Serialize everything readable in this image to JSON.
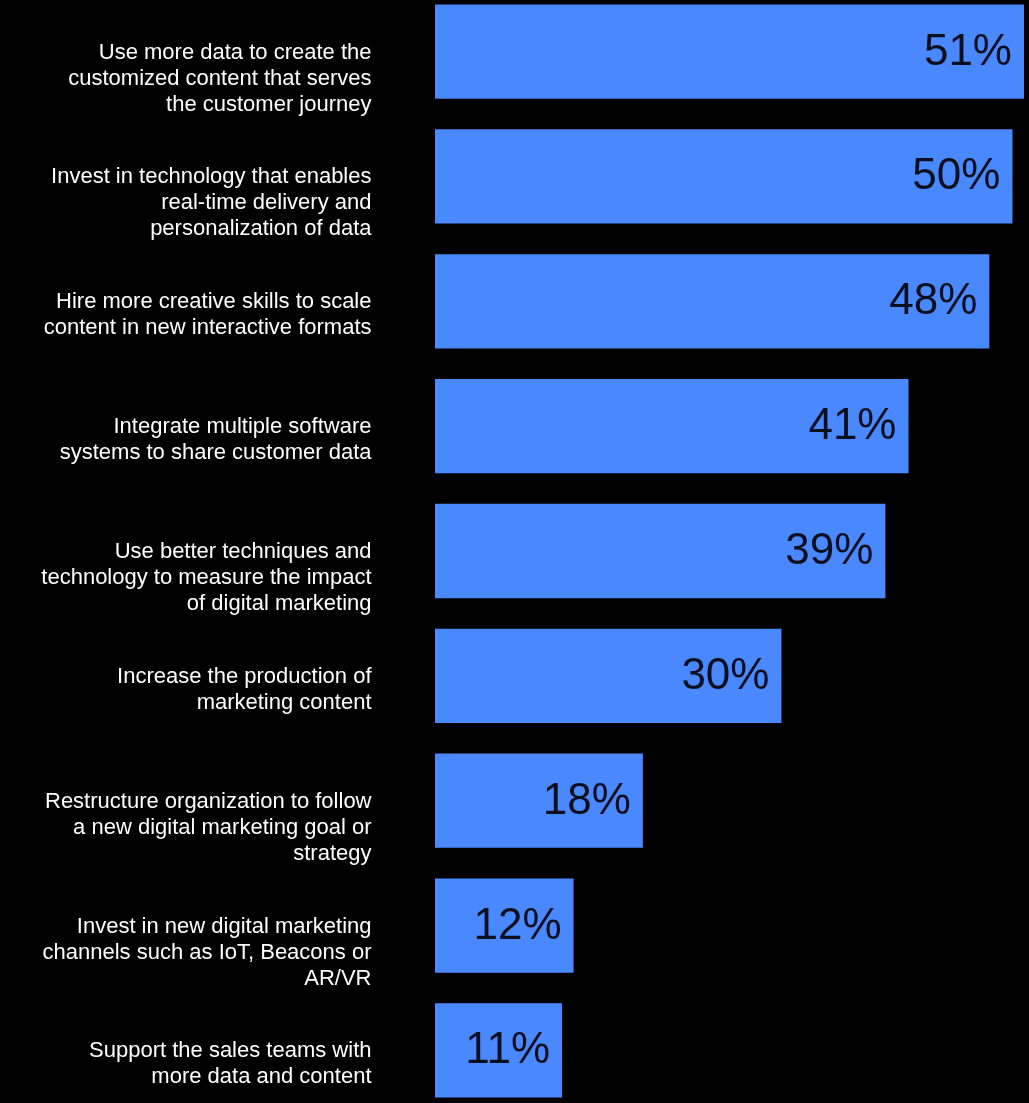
{
  "chart_data": {
    "type": "bar",
    "orientation": "horizontal",
    "categories": [
      "Use more data to create the customized content that serves the customer journey",
      "Invest in technology that enables real-time delivery and personalization of data",
      "Hire more creative skills to scale content in new interactive formats",
      "Integrate multiple software systems to share customer data",
      "Use better techniques and technology to measure the impact of digital marketing",
      "Increase the production of marketing content",
      "Restructure organization to follow a new digital marketing goal or strategy",
      "Invest in new digital marketing channels such as IoT, Beacons or AR/VR",
      "Support the sales teams with more data and content"
    ],
    "values": [
      51,
      50,
      48,
      41,
      39,
      30,
      18,
      12,
      11
    ],
    "value_labels": [
      "51%",
      "50%",
      "48%",
      "41%",
      "39%",
      "30%",
      "18%",
      "12%",
      "11%"
    ],
    "color": "#4a88ff"
  }
}
